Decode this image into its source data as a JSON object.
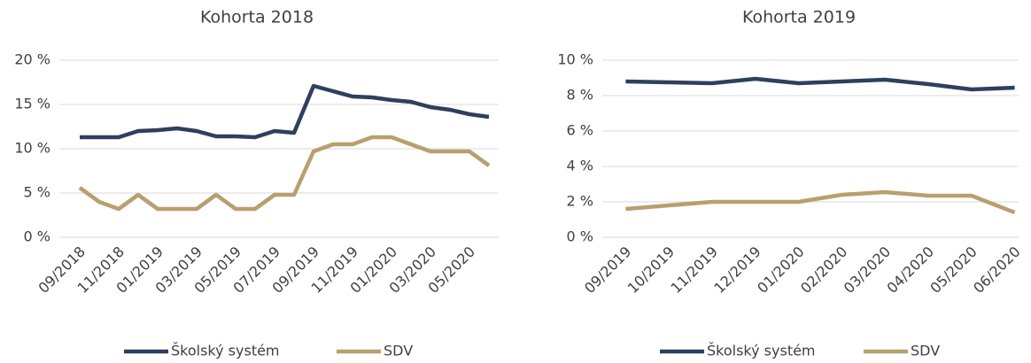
{
  "chart_data": [
    {
      "type": "line",
      "title": "Kohorta 2018",
      "categories": [
        "09/2018",
        null,
        "11/2018",
        null,
        "01/2019",
        null,
        "03/2019",
        null,
        "05/2019",
        null,
        "07/2019",
        null,
        "09/2019",
        null,
        "11/2019",
        null,
        "01/2020",
        null,
        "03/2020",
        null,
        "05/2020",
        null
      ],
      "series": [
        {
          "name": "Školský systém",
          "color": "#2e3f5f",
          "values": [
            11.3,
            11.3,
            11.3,
            12.0,
            12.1,
            12.3,
            12.0,
            11.4,
            11.4,
            11.3,
            12.0,
            11.8,
            17.1,
            16.5,
            15.9,
            15.8,
            15.5,
            15.3,
            14.7,
            14.4,
            13.9,
            13.6
          ]
        },
        {
          "name": "SDV",
          "color": "#b89f6e",
          "values": [
            5.6,
            4.0,
            3.2,
            4.8,
            3.2,
            3.2,
            3.2,
            4.8,
            3.2,
            3.2,
            4.8,
            4.8,
            9.7,
            10.5,
            10.5,
            11.3,
            11.3,
            10.5,
            9.7,
            9.7,
            9.7,
            8.1
          ]
        }
      ],
      "ylim": [
        0,
        20
      ],
      "yticks": [
        {
          "value": 0,
          "label": "0 %"
        },
        {
          "value": 5,
          "label": "5 %"
        },
        {
          "value": 10,
          "label": "10 %"
        },
        {
          "value": 15,
          "label": "15 %"
        },
        {
          "value": 20,
          "label": "20 %"
        }
      ],
      "grid": true,
      "legend": "bottom"
    },
    {
      "type": "line",
      "title": "Kohorta 2019",
      "categories": [
        "09/2019",
        "10/2019",
        "11/2019",
        "12/2019",
        "01/2020",
        "02/2020",
        "03/2020",
        "04/2020",
        "05/2020",
        "06/2020"
      ],
      "series": [
        {
          "name": "Školský systém",
          "color": "#2e3f5f",
          "values": [
            8.8,
            8.75,
            8.7,
            8.95,
            8.7,
            8.8,
            8.9,
            8.65,
            8.35,
            8.45
          ]
        },
        {
          "name": "SDV",
          "color": "#b89f6e",
          "values": [
            1.6,
            1.8,
            2.0,
            2.0,
            2.0,
            2.4,
            2.55,
            2.35,
            2.35,
            1.4
          ]
        }
      ],
      "ylim": [
        0,
        10
      ],
      "yticks": [
        {
          "value": 0,
          "label": "0 %"
        },
        {
          "value": 2,
          "label": "2 %"
        },
        {
          "value": 4,
          "label": "4 %"
        },
        {
          "value": 6,
          "label": "6 %"
        },
        {
          "value": 8,
          "label": "8 %"
        },
        {
          "value": 10,
          "label": "10 %"
        }
      ],
      "grid": true,
      "legend": "bottom"
    }
  ]
}
